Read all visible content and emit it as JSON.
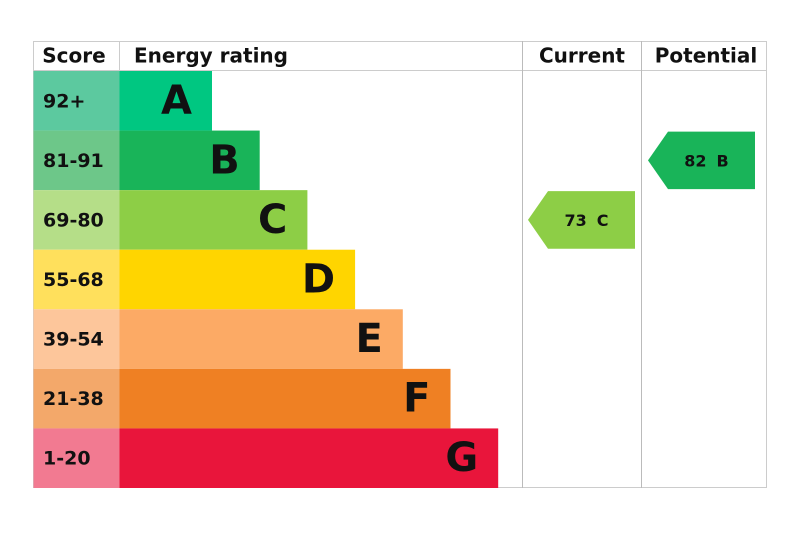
{
  "header": {
    "score": "Score",
    "energy_rating": "Energy rating",
    "current": "Current",
    "potential": "Potential"
  },
  "rows": [
    {
      "score": "92+",
      "rating": "A",
      "color": "#00c781",
      "score_color": "#5cc99f"
    },
    {
      "score": "81-91",
      "rating": "B",
      "color": "#19b459",
      "score_color": "#6dc789"
    },
    {
      "score": "69-80",
      "rating": "C",
      "color": "#8dce46",
      "score_color": "#b5de88"
    },
    {
      "score": "55-68",
      "rating": "D",
      "color": "#ffd500",
      "score_color": "#ffe05c"
    },
    {
      "score": "39-54",
      "rating": "E",
      "color": "#fcaa65",
      "score_color": "#fdc69b"
    },
    {
      "score": "21-38",
      "rating": "F",
      "color": "#ef8023",
      "score_color": "#f3a86a"
    },
    {
      "score": "1-20",
      "rating": "G",
      "color": "#e9153b",
      "score_color": "#f27a91"
    }
  ],
  "current": {
    "score": 73,
    "band": "C"
  },
  "potential": {
    "score": 82,
    "band": "B"
  }
}
